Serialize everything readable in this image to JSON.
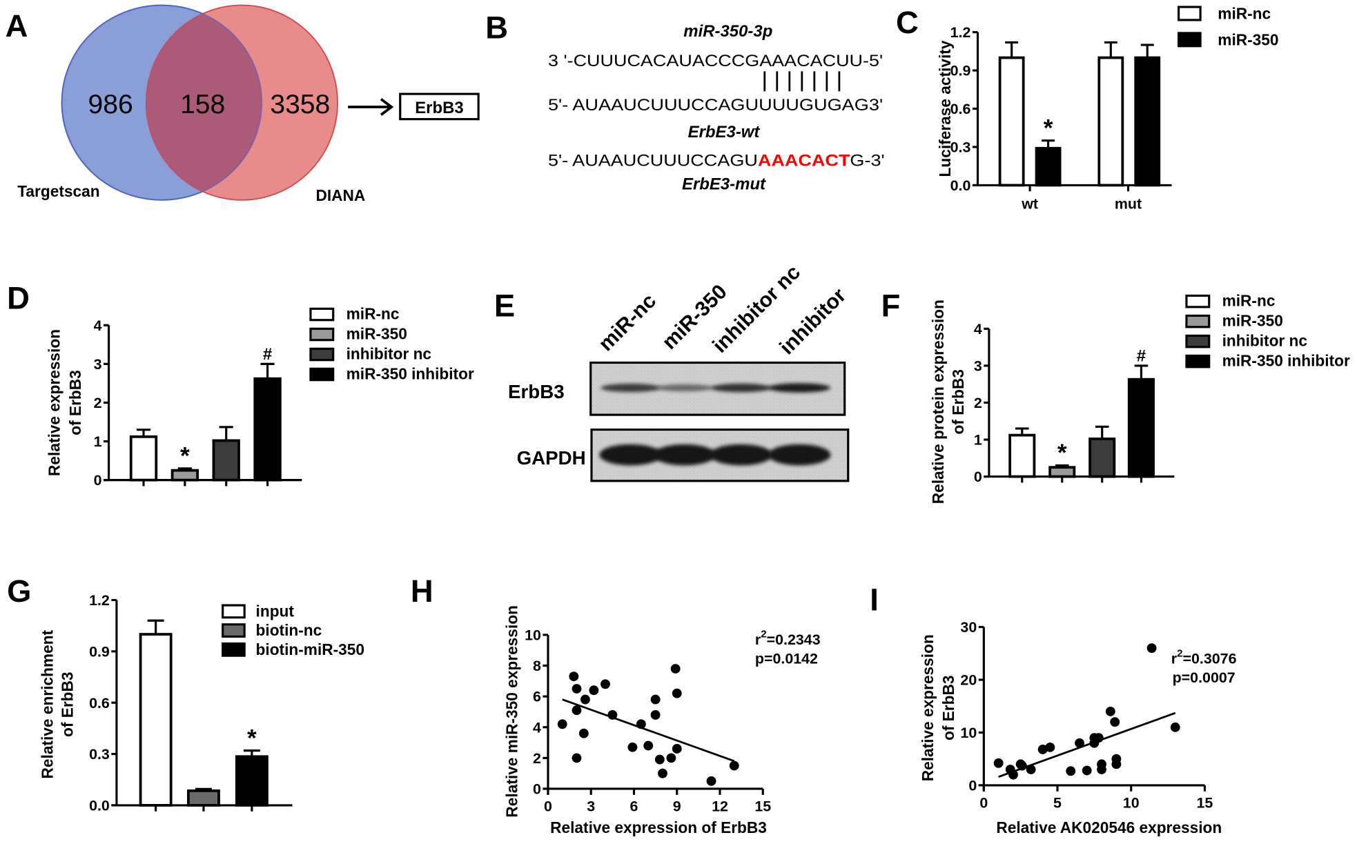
{
  "panels": {
    "A": {
      "label": "A",
      "venn": {
        "left_set": "Targetscan",
        "right_set": "DIANA",
        "left_only": "986",
        "overlap": "158",
        "right_only": "3358",
        "left_color": "#8a9ed8",
        "right_color": "#e88b8b",
        "overlap_color": "#ab5a77",
        "result_box": "ErbB3"
      }
    },
    "B": {
      "label": "B",
      "mirna_title": "miR-350-3p",
      "mirna_seq": "3 '-CUUUCACAUACCCGAAACACUU-5'",
      "wt_seq": "5'- AUAAUCUUUCCAGUUUUGUGAG3'",
      "wt_title": "ErbE3-wt",
      "mut_seq_prefix": "5'- AUAAUCUUUCCAGU",
      "mut_seq_mutated": "AAACACT",
      "mut_seq_suffix": "G-3'",
      "mut_title": "ErbE3-mut",
      "mutation_color": "#ff0000",
      "base_pairs": 7
    },
    "C": {
      "label": "C"
    },
    "D": {
      "label": "D"
    },
    "E": {
      "label": "E",
      "lanes": [
        "miR-nc",
        "miR-350",
        "inhibitor nc",
        "inhibitor"
      ],
      "blots": [
        {
          "name": "ErbB3",
          "band_intensity": [
            0.75,
            0.45,
            0.8,
            0.95
          ]
        },
        {
          "name": "GAPDH",
          "band_intensity": [
            1,
            1,
            1,
            1
          ]
        }
      ]
    },
    "F": {
      "label": "F"
    },
    "G": {
      "label": "G"
    },
    "H": {
      "label": "H"
    },
    "I": {
      "label": "I"
    }
  },
  "chart_data": [
    {
      "panel": "C",
      "type": "bar",
      "categories": [
        "wt",
        "mut"
      ],
      "ylabel": "Luciferase activity",
      "ylim": [
        0,
        1.2
      ],
      "yticks": [
        "0.0",
        "0.3",
        "0.6",
        "0.9",
        "1.2"
      ],
      "bars": [
        {
          "category": "wt",
          "series": "miR-nc",
          "value": 1.0,
          "error": 0.12,
          "mark": ""
        },
        {
          "category": "wt",
          "series": "miR-350",
          "value": 0.29,
          "error": 0.06,
          "mark": "*"
        },
        {
          "category": "mut",
          "series": "miR-nc",
          "value": 1.0,
          "error": 0.12,
          "mark": ""
        },
        {
          "category": "mut",
          "series": "miR-350",
          "value": 1.0,
          "error": 0.1,
          "mark": ""
        }
      ],
      "legend": [
        {
          "name": "miR-nc",
          "color": "#ffffff"
        },
        {
          "name": "miR-350",
          "color": "#000000"
        }
      ],
      "legend_position": "top-right"
    },
    {
      "panel": "D",
      "type": "bar",
      "ylabel": [
        "Relative expression",
        "of ErbB3"
      ],
      "ylim": [
        0,
        4
      ],
      "yticks": [
        "0",
        "1",
        "2",
        "3",
        "4"
      ],
      "bars": [
        {
          "series": "miR-nc",
          "value": 1.12,
          "error": 0.18,
          "mark": ""
        },
        {
          "series": "miR-350",
          "value": 0.25,
          "error": 0.05,
          "mark": "*"
        },
        {
          "series": "inhibitor nc",
          "value": 1.02,
          "error": 0.35,
          "mark": ""
        },
        {
          "series": "miR-350 inhibitor",
          "value": 2.62,
          "error": 0.38,
          "mark": "#"
        }
      ],
      "legend": [
        {
          "name": "miR-nc",
          "color": "#ffffff"
        },
        {
          "name": "miR-350",
          "color": "#9a9a9a"
        },
        {
          "name": "inhibitor nc",
          "color": "#3c3c3c"
        },
        {
          "name": "miR-350 inhibitor",
          "color": "#000000"
        }
      ],
      "legend_position": "right"
    },
    {
      "panel": "F",
      "type": "bar",
      "ylabel": [
        "Relative protein expression",
        "of ErbB3"
      ],
      "ylim": [
        0,
        4
      ],
      "yticks": [
        "0",
        "1",
        "2",
        "3",
        "4"
      ],
      "bars": [
        {
          "series": "miR-nc",
          "value": 1.12,
          "error": 0.18,
          "mark": ""
        },
        {
          "series": "miR-350",
          "value": 0.25,
          "error": 0.05,
          "mark": "*"
        },
        {
          "series": "inhibitor nc",
          "value": 1.02,
          "error": 0.33,
          "mark": ""
        },
        {
          "series": "miR-350 inhibitor",
          "value": 2.63,
          "error": 0.37,
          "mark": "#"
        }
      ],
      "legend": [
        {
          "name": "miR-nc",
          "color": "#ffffff"
        },
        {
          "name": "miR-350",
          "color": "#9a9a9a"
        },
        {
          "name": "inhibitor nc",
          "color": "#3c3c3c"
        },
        {
          "name": "miR-350 inhibitor",
          "color": "#000000"
        }
      ],
      "legend_position": "top-right"
    },
    {
      "panel": "G",
      "type": "bar",
      "ylabel": [
        "Relative enrichment",
        "of ErbB3"
      ],
      "ylim": [
        0,
        1.2
      ],
      "yticks": [
        "0.0",
        "0.3",
        "0.6",
        "0.9",
        "1.2"
      ],
      "bars": [
        {
          "series": "input",
          "value": 1.0,
          "error": 0.08,
          "mark": ""
        },
        {
          "series": "biotin-nc",
          "value": 0.085,
          "error": 0.01,
          "mark": ""
        },
        {
          "series": "biotin-miR-350",
          "value": 0.285,
          "error": 0.035,
          "mark": "*"
        }
      ],
      "legend": [
        {
          "name": "input",
          "color": "#ffffff"
        },
        {
          "name": "biotin-nc",
          "color": "#6a6a6a"
        },
        {
          "name": "biotin-miR-350",
          "color": "#000000"
        }
      ],
      "legend_position": "top-right"
    },
    {
      "panel": "H",
      "type": "scatter",
      "xlabel": "Relative expression of ErbB3",
      "ylabel": "Relative miR-350 expression",
      "xlim": [
        0,
        15
      ],
      "ylim": [
        0,
        10
      ],
      "xticks": [
        "0",
        "3",
        "6",
        "9",
        "12",
        "15"
      ],
      "yticks": [
        "0",
        "2",
        "4",
        "6",
        "8",
        "10"
      ],
      "points": [
        [
          1,
          4.2
        ],
        [
          1.8,
          7.3
        ],
        [
          2,
          6.5
        ],
        [
          2,
          5.1
        ],
        [
          2,
          2
        ],
        [
          2.5,
          3.6
        ],
        [
          2.6,
          5.8
        ],
        [
          3.2,
          6.4
        ],
        [
          4,
          6.8
        ],
        [
          4.5,
          4.8
        ],
        [
          5.9,
          2.7
        ],
        [
          6.5,
          4.2
        ],
        [
          7,
          2.8
        ],
        [
          7.5,
          5.8
        ],
        [
          7.5,
          4.8
        ],
        [
          7.8,
          1.9
        ],
        [
          8,
          1
        ],
        [
          8.6,
          2
        ],
        [
          8.9,
          7.8
        ],
        [
          9,
          6.2
        ],
        [
          9,
          2.6
        ],
        [
          11.4,
          0.5
        ],
        [
          13,
          1.5
        ]
      ],
      "fit_line": {
        "x": [
          1,
          13
        ],
        "y": [
          5.8,
          1.8
        ]
      },
      "stats": {
        "r2_prefix": "r",
        "r2_sup": "2",
        "r2_value": "=0.2343",
        "p": "p=0.0142"
      }
    },
    {
      "panel": "I",
      "type": "scatter",
      "xlabel": "Relative  AK020546 expression",
      "ylabel": [
        "Relative expression",
        "of ErbB3"
      ],
      "xlim": [
        0,
        15
      ],
      "ylim": [
        0,
        30
      ],
      "xticks": [
        "0",
        "5",
        "10",
        "15"
      ],
      "yticks": [
        "0",
        "10",
        "20",
        "30"
      ],
      "points": [
        [
          1,
          4.2
        ],
        [
          1.8,
          3
        ],
        [
          2,
          2
        ],
        [
          2.5,
          4
        ],
        [
          2.6,
          3.7
        ],
        [
          3.2,
          3
        ],
        [
          4,
          6.8
        ],
        [
          4.5,
          7.2
        ],
        [
          5.9,
          2.7
        ],
        [
          6.5,
          8
        ],
        [
          7,
          2.8
        ],
        [
          7.5,
          9
        ],
        [
          7.5,
          8
        ],
        [
          7.8,
          9
        ],
        [
          8,
          4
        ],
        [
          8,
          3
        ],
        [
          8.6,
          14
        ],
        [
          8.9,
          12
        ],
        [
          9,
          5
        ],
        [
          9,
          4
        ],
        [
          11.4,
          26
        ],
        [
          13,
          11
        ]
      ],
      "fit_line": {
        "x": [
          1,
          13
        ],
        "y": [
          1.6,
          13.7
        ]
      },
      "stats": {
        "r2_prefix": "r",
        "r2_sup": "2",
        "r2_value": "=0.3076",
        "p": "p=0.0007"
      }
    }
  ]
}
